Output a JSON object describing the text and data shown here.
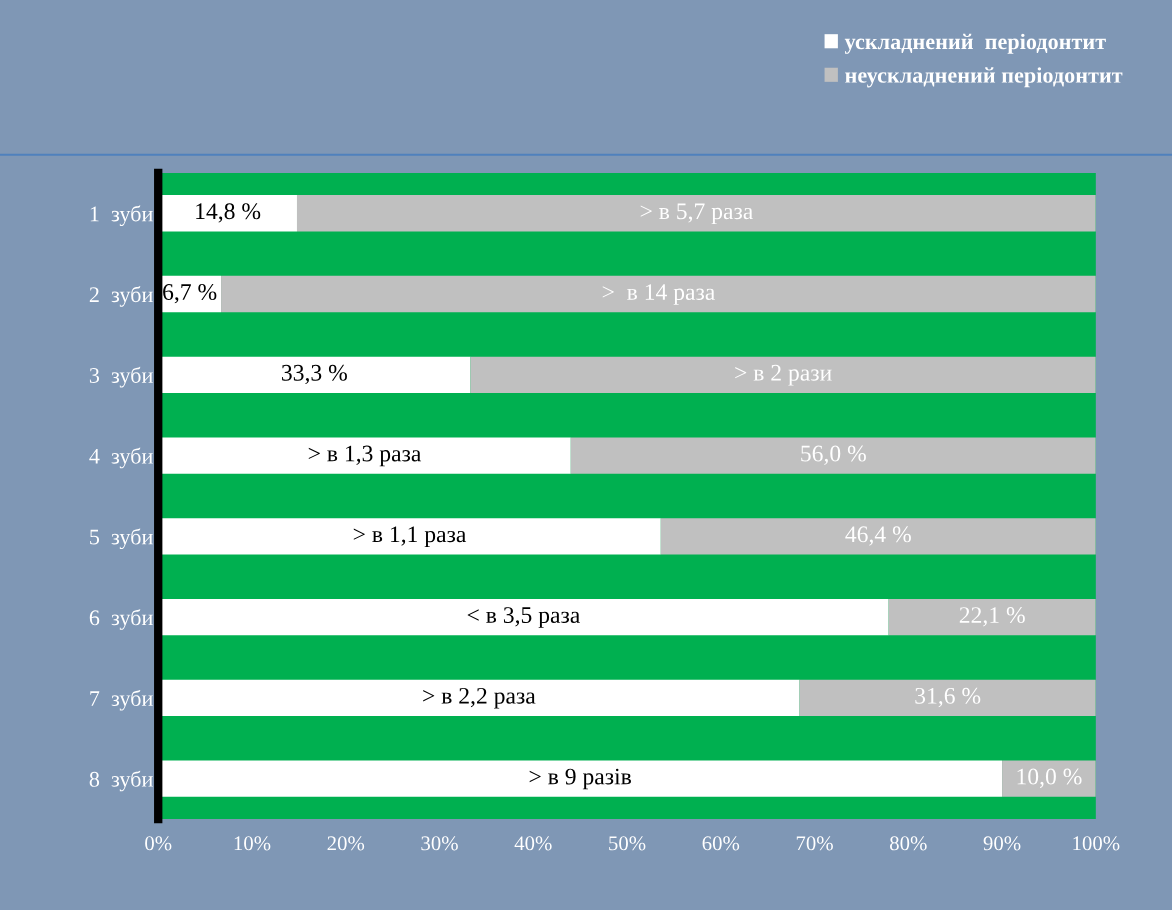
{
  "chart_data": {
    "type": "bar",
    "orientation": "horizontal",
    "stacked": true,
    "categories": [
      "1  зуби",
      "2  зуби",
      "3  зуби",
      "4  зуби",
      "5  зуби",
      "6  зуби",
      "7  зуби",
      "8  зуби"
    ],
    "series": [
      {
        "name": "ускладнений  періодонтит",
        "color": "#ffffff",
        "values": [
          14.8,
          6.7,
          33.3,
          44.0,
          53.6,
          77.9,
          68.4,
          90.0
        ],
        "value_labels": [
          "14,8 %",
          "6,7 %",
          "33,3 %",
          "> в 1,3 раза",
          "> в 1,1 раза",
          "< в 3,5 раза",
          "> в 2,2 раза",
          "> в 9 разів"
        ]
      },
      {
        "name": "неускладнений періодонтит",
        "color": "#c0c0c0",
        "values": [
          85.2,
          93.3,
          66.7,
          56.0,
          46.4,
          22.1,
          31.6,
          10.0
        ],
        "value_labels": [
          "> в 5,7 раза",
          ">  в 14 раза",
          "> в 2 рази",
          "56,0 %",
          "46,4 %",
          "22,1 %",
          "31,6 %",
          "10,0 %"
        ]
      }
    ],
    "xlim": [
      0,
      100
    ],
    "xticks": [
      {
        "value": 0,
        "label": "0%"
      },
      {
        "value": 10,
        "label": "10%"
      },
      {
        "value": 20,
        "label": "20%"
      },
      {
        "value": 30,
        "label": "30%"
      },
      {
        "value": 40,
        "label": "40%"
      },
      {
        "value": 50,
        "label": "50%"
      },
      {
        "value": 60,
        "label": "60%"
      },
      {
        "value": 70,
        "label": "70%"
      },
      {
        "value": 80,
        "label": "80%"
      },
      {
        "value": 90,
        "label": "90%"
      },
      {
        "value": 100,
        "label": "100%"
      }
    ],
    "grid": false,
    "legend": "top right"
  }
}
